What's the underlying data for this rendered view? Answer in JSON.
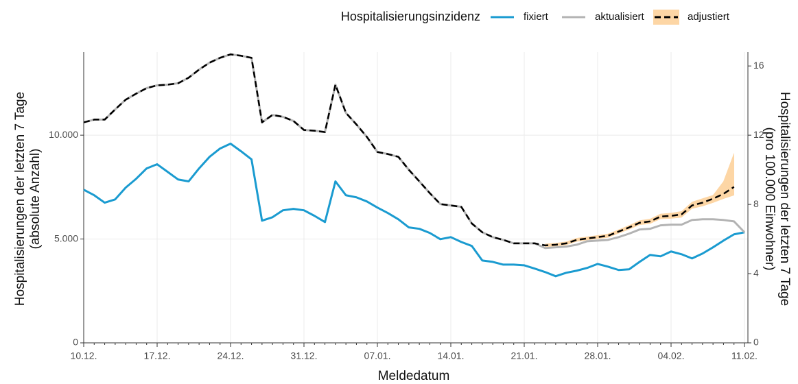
{
  "chart_data": {
    "type": "line",
    "legend_title": "Hospitalisierungsinzidenz",
    "x_label": "Meldedatum",
    "y_label": [
      "Hospitalisierungen der letzten 7 Tage",
      "(absolute Anzahl)"
    ],
    "y2_label": [
      "Hospitalisierungen der letzten 7 Tage",
      "(pro 100.000 Einwohner)"
    ],
    "categories": [
      "10.12.",
      null,
      null,
      null,
      null,
      null,
      null,
      "17.12.",
      null,
      null,
      null,
      null,
      null,
      null,
      "24.12.",
      null,
      null,
      null,
      null,
      null,
      null,
      "31.12.",
      null,
      null,
      null,
      null,
      null,
      null,
      "07.01.",
      null,
      null,
      null,
      null,
      null,
      null,
      "14.01.",
      null,
      null,
      null,
      null,
      null,
      null,
      "21.01.",
      null,
      null,
      null,
      null,
      null,
      null,
      "28.01.",
      null,
      null,
      null,
      null,
      null,
      null,
      "04.02.",
      null,
      null,
      null,
      null,
      null,
      null,
      "11.02."
    ],
    "ylim": [
      0,
      14000
    ],
    "yticks": [
      0,
      {
        "value": 5000,
        "label": "5.000"
      },
      {
        "value": 10000,
        "label": "10.000"
      }
    ],
    "y2lim": [
      0,
      16.8
    ],
    "y2ticks": [
      0,
      4,
      8,
      12,
      16
    ],
    "grid": true,
    "legend_position": "top",
    "band_color": "#fdd6a5",
    "series": [
      {
        "name": "fixiert",
        "color": "#1a9bd0",
        "style": "solid",
        "axis": "y2",
        "values": [
          8.85,
          8.53,
          8.1,
          8.29,
          8.97,
          9.48,
          10.08,
          10.32,
          9.88,
          9.44,
          9.33,
          10.08,
          10.75,
          11.23,
          11.51,
          11.07,
          10.6,
          7.06,
          7.26,
          7.66,
          7.74,
          7.66,
          7.34,
          6.98,
          9.33,
          8.53,
          8.41,
          8.17,
          7.82,
          7.5,
          7.14,
          6.67,
          6.59,
          6.35,
          5.99,
          6.11,
          5.83,
          5.6,
          4.76,
          4.68,
          4.52,
          4.52,
          4.48,
          4.29,
          4.09,
          3.85,
          4.05,
          4.17,
          4.33,
          4.56,
          4.4,
          4.21,
          4.25,
          4.68,
          5.08,
          5.0,
          5.28,
          5.12,
          4.88,
          5.16,
          5.52,
          5.91,
          6.27,
          6.39
        ]
      },
      {
        "name": "aktualisiert",
        "color": "#b3b3b3",
        "style": "solid",
        "axis": "y2",
        "values": [
          12.74,
          12.9,
          12.9,
          13.49,
          14.05,
          14.4,
          14.72,
          14.88,
          14.92,
          15.0,
          15.32,
          15.79,
          16.19,
          16.47,
          16.67,
          16.59,
          16.47,
          12.74,
          13.17,
          13.06,
          12.82,
          12.3,
          12.26,
          12.18,
          14.92,
          13.29,
          12.62,
          11.9,
          11.03,
          10.91,
          10.75,
          10.0,
          9.33,
          8.65,
          8.02,
          7.94,
          7.86,
          6.9,
          6.39,
          6.11,
          5.95,
          5.75,
          5.75,
          5.75,
          5.48,
          5.52,
          5.56,
          5.67,
          5.87,
          5.91,
          5.95,
          6.11,
          6.31,
          6.55,
          6.59,
          6.79,
          6.83,
          6.83,
          7.1,
          7.14,
          7.14,
          7.1,
          7.02,
          6.39
        ]
      },
      {
        "name": "adjustiert",
        "color": "#000000",
        "style": "dashed",
        "axis": "y2",
        "values": [
          12.74,
          12.9,
          12.9,
          13.49,
          14.05,
          14.4,
          14.72,
          14.88,
          14.92,
          15.0,
          15.32,
          15.79,
          16.19,
          16.47,
          16.67,
          16.59,
          16.47,
          12.74,
          13.17,
          13.06,
          12.82,
          12.3,
          12.26,
          12.18,
          14.92,
          13.29,
          12.62,
          11.9,
          11.03,
          10.91,
          10.75,
          10.0,
          9.33,
          8.65,
          8.02,
          7.94,
          7.86,
          6.9,
          6.39,
          6.11,
          5.95,
          5.75,
          5.75,
          5.75,
          5.63,
          5.67,
          5.75,
          5.95,
          6.03,
          6.11,
          6.19,
          6.43,
          6.67,
          6.94,
          7.02,
          7.3,
          7.34,
          7.42,
          7.94,
          8.1,
          8.33,
          8.61,
          9.01,
          null
        ],
        "lower": [
          null,
          null,
          null,
          null,
          null,
          null,
          null,
          null,
          null,
          null,
          null,
          null,
          null,
          null,
          null,
          null,
          null,
          null,
          null,
          null,
          null,
          null,
          null,
          null,
          null,
          null,
          null,
          null,
          null,
          null,
          null,
          null,
          null,
          null,
          null,
          null,
          null,
          null,
          null,
          null,
          null,
          null,
          null,
          null,
          5.55,
          5.59,
          5.66,
          5.86,
          5.94,
          6.02,
          6.09,
          6.33,
          6.56,
          6.82,
          6.89,
          7.16,
          7.19,
          7.25,
          7.76,
          7.9,
          8.1,
          8.33,
          8.53,
          null
        ],
        "upper": [
          null,
          null,
          null,
          null,
          null,
          null,
          null,
          null,
          null,
          null,
          null,
          null,
          null,
          null,
          null,
          null,
          null,
          null,
          null,
          null,
          null,
          null,
          null,
          null,
          null,
          null,
          null,
          null,
          null,
          null,
          null,
          null,
          null,
          null,
          null,
          null,
          null,
          null,
          null,
          null,
          null,
          null,
          null,
          null,
          5.72,
          5.76,
          5.84,
          6.05,
          6.13,
          6.21,
          6.3,
          6.54,
          6.79,
          7.07,
          7.16,
          7.45,
          7.5,
          7.6,
          8.14,
          8.34,
          8.53,
          9.33,
          10.95,
          null
        ]
      }
    ]
  }
}
